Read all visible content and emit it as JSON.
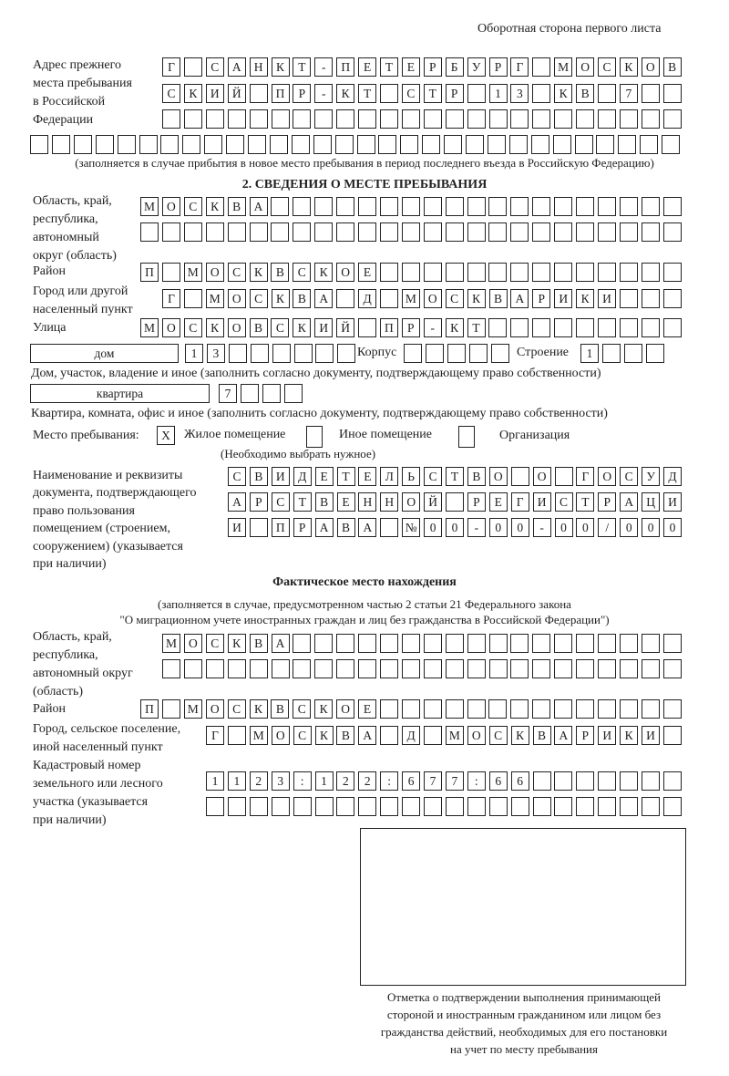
{
  "header": {
    "page_side": "Оборотная сторона первого листа"
  },
  "prev_address": {
    "label": [
      "Адрес прежнего",
      "места пребывания",
      "в Российской",
      "Федерации"
    ],
    "rows": [
      "Г САНКТ-ПЕТЕРБУРГ МОСКОВ",
      "СКИЙ ПР-КТ СТР 13 КВ 7  ",
      "                        "
    ],
    "extra_row": "                              ",
    "note": "(заполняется в случае прибытия в новое место пребывания в период последнего въезда в Российскую Федерацию)"
  },
  "section2": {
    "title": "2. СВЕДЕНИЯ О МЕСТЕ ПРЕБЫВАНИЯ",
    "region_label": [
      "Область, край,",
      "республика,",
      "автономный",
      "округ (область)"
    ],
    "region_rows": [
      "МОСКВА                   ",
      "                         "
    ],
    "district_label": "Район",
    "district": "П МОСКВСКОЕ              ",
    "city_label": [
      "Город или другой",
      "населенный пункт"
    ],
    "city": "Г МОСКВА Д МОСКВАРИКИ   ",
    "street_label": "Улица",
    "street": "МОСКОВСКИЙ ПР-КТ         ",
    "house_type": "дом",
    "house": "13      ",
    "building_label": "Корпус",
    "building": "     ",
    "structure_label": "Строение",
    "structure": "1   ",
    "house_note": "Дом, участок, владение и иное (заполнить согласно документу, подтверждающему право собственности)",
    "apartment_type": "квартира",
    "apartment": "7   ",
    "apartment_note": "Квартира, комната, офис и иное (заполнить согласно документу, подтверждающему право собственности)",
    "stay_place_label": "Место пребывания:",
    "stay_options": [
      {
        "mark": "X",
        "label": "Жилое помещение"
      },
      {
        "mark": "",
        "label": "Иное помещение"
      },
      {
        "mark": "",
        "label": "Организация"
      }
    ],
    "stay_note": "(Необходимо выбрать нужное)",
    "doc_label": [
      "Наименование и реквизиты",
      "документа, подтверждающего",
      "право пользования",
      "помещением (строением,",
      "сооружением) (указывается",
      "при наличии)"
    ],
    "doc_rows": [
      "СВИДЕТЕЛЬСТВО О ГОСУД",
      "АРСТВЕННОЙ РЕГИСТРАЦИ",
      "И ПРАВА №00-00-00/000"
    ]
  },
  "actual": {
    "title": "Фактическое место нахождения",
    "note": [
      "(заполняется в случае, предусмотренном частью 2 статьи 21 Федерального закона",
      "\"О миграционном учете иностранных граждан и лиц без гражданства в Российской Федерации\")"
    ],
    "region_label": [
      "Область, край,",
      "республика,",
      "автономный округ",
      "(область)"
    ],
    "region_rows": [
      "МОСКВА                  ",
      "                        "
    ],
    "district_label": "Район",
    "district": "П МОСКВСКОЕ              ",
    "city_label": [
      "Город, сельское поселение,",
      "иной населенный пункт"
    ],
    "city": "Г МОСКВА Д МОСКВАРИКИ ",
    "cadastral_label": [
      "Кадастровый номер",
      "земельного или лесного",
      "участка (указывается",
      "при наличии)"
    ],
    "cadastral_rows": [
      "1123:122:677:66       ",
      "                      "
    ]
  },
  "confirmation": {
    "caption": [
      "Отметка о подтверждении выполнения принимающей",
      "стороной и иностранным гражданином или лицом без",
      "гражданства действий, необходимых для его постановки",
      "на учет по месту пребывания"
    ]
  }
}
